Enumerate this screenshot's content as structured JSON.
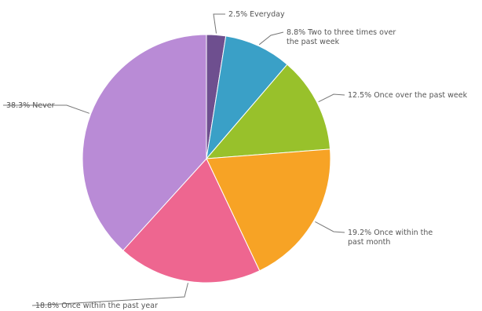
{
  "chart_data": {
    "type": "pie",
    "title": "",
    "slices": [
      {
        "label": "2.5% Everyday",
        "value": 2.5,
        "color": "#6e4f8f"
      },
      {
        "label": "8.8% Two to three times over the past week",
        "value": 8.8,
        "color": "#3aa0c7"
      },
      {
        "label": "12.5% Once over the past week",
        "value": 12.5,
        "color": "#98c12b"
      },
      {
        "label": "19.2% Once within the past month",
        "value": 19.2,
        "color": "#f7a325"
      },
      {
        "label": "18.8% Once within the past year",
        "value": 18.8,
        "color": "#ee6690"
      },
      {
        "label": "38.3% Never",
        "value": 38.3,
        "color": "#b98bd6"
      }
    ],
    "start_angle_deg": 0,
    "direction": "clockwise",
    "legend": "none"
  }
}
